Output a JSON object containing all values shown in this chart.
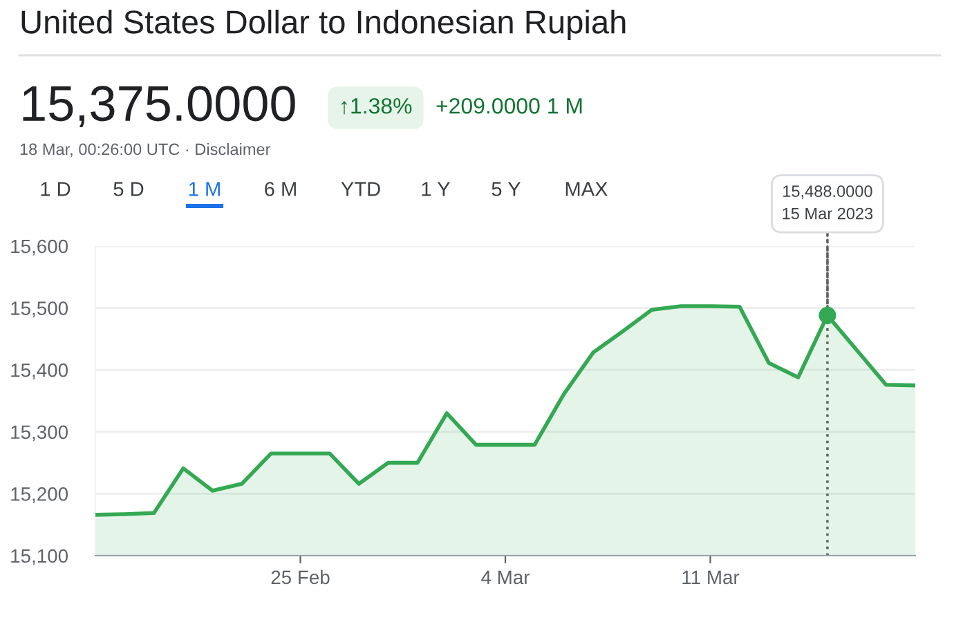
{
  "chart_data": {
    "type": "area",
    "title": "United States Dollar to Indonesian Rupiah",
    "annotations": [
      "15,375.0000",
      "↑1.38%",
      "+209.0000 1 M",
      "18 Mar, 00:26:00 UTC · Disclaimer",
      "1 D",
      "5 D",
      "1 M",
      "6 M",
      "YTD",
      "1 Y",
      "5 Y",
      "MAX",
      {
        "text": "15,488.0000\n15 Mar 2023",
        "x": "2023-03-15",
        "y": 15488
      }
    ],
    "x": [
      "2023-02-18",
      "2023-02-19",
      "2023-02-20",
      "2023-02-21",
      "2023-02-22",
      "2023-02-23",
      "2023-02-24",
      "2023-02-25",
      "2023-02-26",
      "2023-02-27",
      "2023-02-28",
      "2023-03-01",
      "2023-03-02",
      "2023-03-03",
      "2023-03-04",
      "2023-03-05",
      "2023-03-06",
      "2023-03-07",
      "2023-03-08",
      "2023-03-09",
      "2023-03-10",
      "2023-03-11",
      "2023-03-12",
      "2023-03-13",
      "2023-03-14",
      "2023-03-15",
      "2023-03-16",
      "2023-03-17",
      "2023-03-18"
    ],
    "series": [
      {
        "color": "#34a853",
        "values": [
          15166,
          15167,
          15169,
          15241,
          15205,
          15216,
          15265,
          15265,
          15265,
          15216,
          15250,
          15250,
          15330,
          15279,
          15279,
          15279,
          15361,
          15428,
          15462,
          15497,
          15503,
          15503,
          15502,
          15411,
          15388,
          15488,
          15432,
          15376,
          15375
        ]
      },
      {
        "type": "scatter",
        "color": "#34a853",
        "marker": "circle",
        "x": [
          "2023-03-15"
        ],
        "values": [
          15488
        ]
      }
    ],
    "xlim": [
      "2023-02-18",
      "2023-03-18"
    ],
    "xticks": [
      {
        "value": "2023-02-25",
        "label": "25 Feb"
      },
      {
        "value": "2023-03-04",
        "label": "4 Mar"
      },
      {
        "value": "2023-03-11",
        "label": "11 Mar"
      }
    ],
    "ylim": [
      15100,
      15600
    ],
    "yticks": [
      {
        "value": 15100,
        "label": "15,100"
      },
      {
        "value": 15200,
        "label": "15,200"
      },
      {
        "value": 15300,
        "label": "15,300"
      },
      {
        "value": 15400,
        "label": "15,400"
      },
      {
        "value": 15500,
        "label": "15,500"
      },
      {
        "value": 15600,
        "label": "15,600"
      }
    ],
    "grid": "y",
    "ref_lines": [
      {
        "axis": "x",
        "value": "2023-03-15",
        "color": "#5f6368",
        "line_style": "dotted"
      }
    ]
  }
}
